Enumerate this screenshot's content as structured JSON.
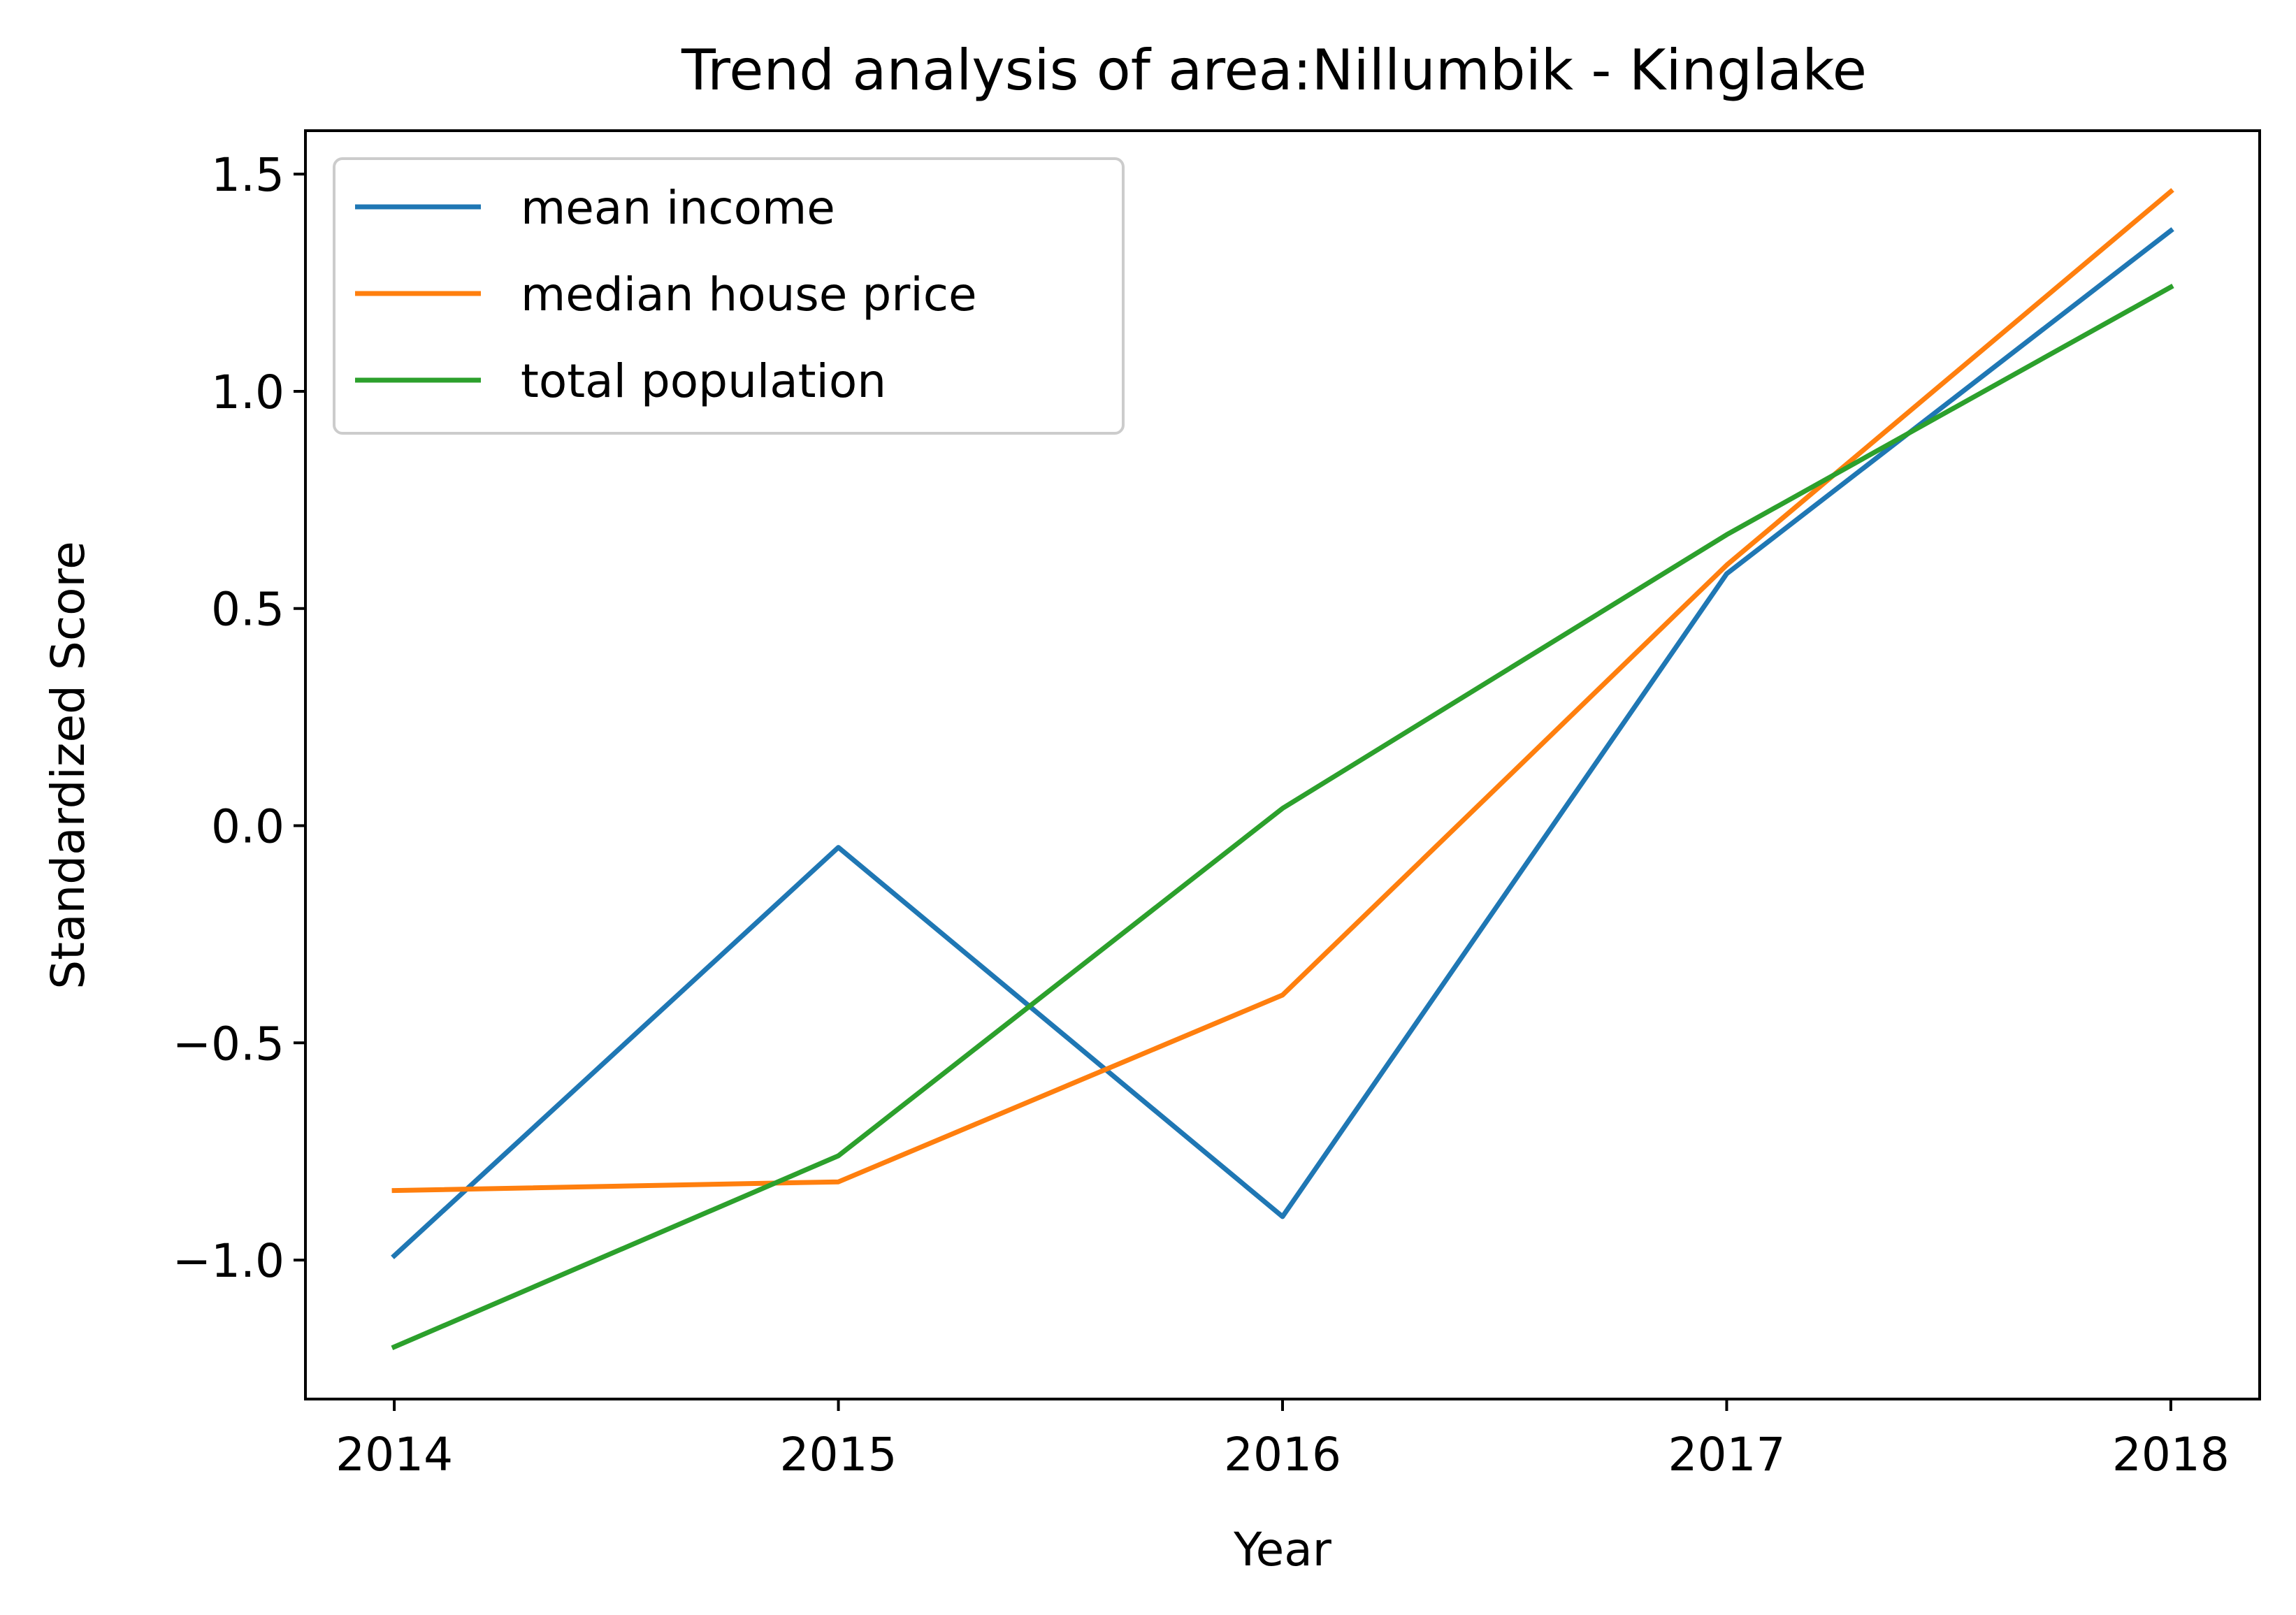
{
  "chart_data": {
    "type": "line",
    "title": "Trend analysis of area:Nillumbik - Kinglake",
    "xlabel": "Year",
    "ylabel": "Standardized Score",
    "categories": [
      "2014",
      "2015",
      "2016",
      "2017",
      "2018"
    ],
    "x": [
      2014,
      2015,
      2016,
      2017,
      2018
    ],
    "xlim": [
      2013.8,
      2018.2
    ],
    "ylim": [
      -1.32,
      1.6
    ],
    "yticks": [
      -1.0,
      -0.5,
      0.0,
      0.5,
      1.0,
      1.5
    ],
    "ytick_labels": [
      "−1.0",
      "−0.5",
      "0.0",
      "0.5",
      "1.0",
      "1.5"
    ],
    "grid": false,
    "legend_position": "top-left",
    "series": [
      {
        "name": "mean income",
        "color": "#1f77b4",
        "values": [
          -0.99,
          -0.05,
          -0.9,
          0.58,
          1.37
        ]
      },
      {
        "name": "median house price",
        "color": "#ff7f0e",
        "values": [
          -0.84,
          -0.82,
          -0.39,
          0.6,
          1.46
        ]
      },
      {
        "name": "total population",
        "color": "#2ca02c",
        "values": [
          -1.2,
          -0.76,
          0.04,
          0.67,
          1.24
        ]
      }
    ]
  }
}
